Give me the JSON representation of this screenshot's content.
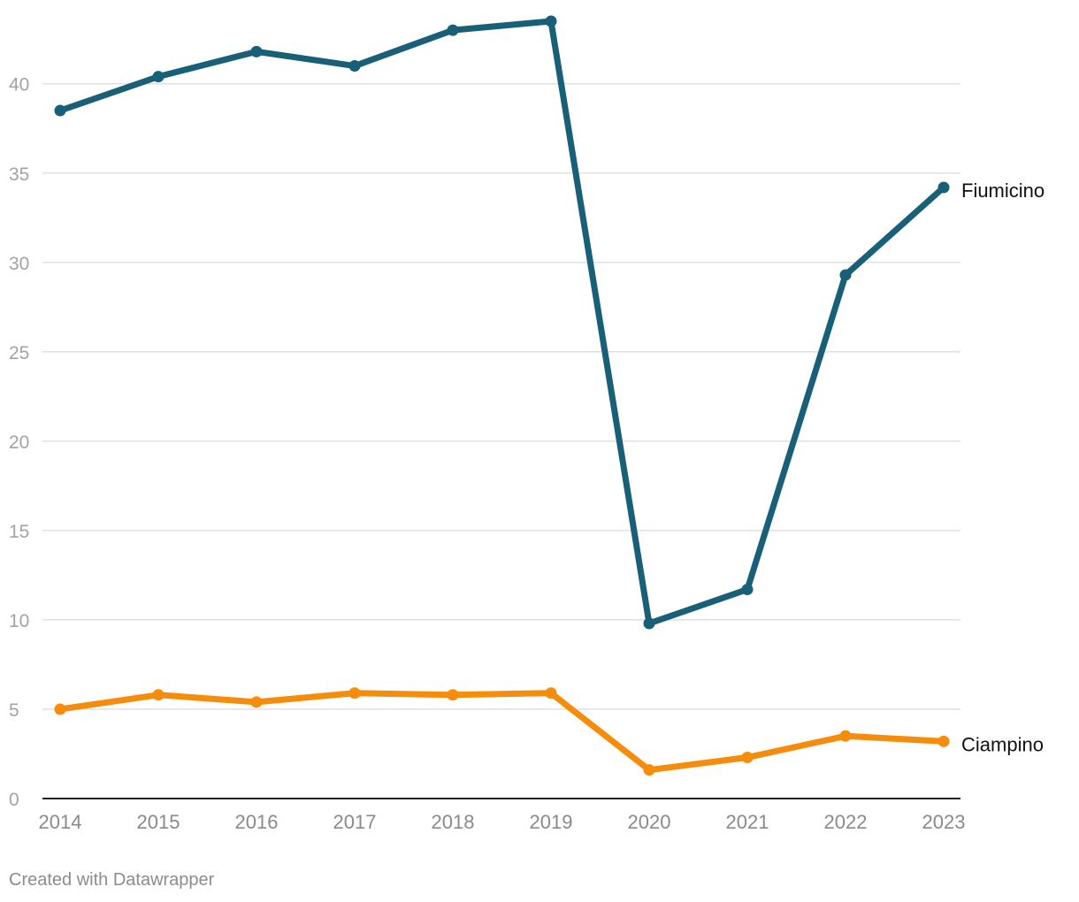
{
  "chart_data": {
    "type": "line",
    "x": [
      "2014",
      "2015",
      "2016",
      "2017",
      "2018",
      "2019",
      "2020",
      "2021",
      "2022",
      "2023"
    ],
    "y_ticks": [
      "0",
      "5",
      "10",
      "15",
      "20",
      "25",
      "30",
      "35",
      "40"
    ],
    "ylim": [
      0,
      43.6
    ],
    "grid": true,
    "series": [
      {
        "name": "Fiumicino",
        "color": "#185f78",
        "values": [
          38.5,
          40.4,
          41.8,
          41.0,
          43.0,
          43.5,
          9.8,
          11.7,
          29.3,
          34.2
        ]
      },
      {
        "name": "Ciampino",
        "color": "#f68c0c",
        "values": [
          5.0,
          5.8,
          5.4,
          5.9,
          5.8,
          5.9,
          1.6,
          2.3,
          3.5,
          3.2
        ]
      }
    ]
  },
  "footer": {
    "credit": "Created with Datawrapper"
  }
}
